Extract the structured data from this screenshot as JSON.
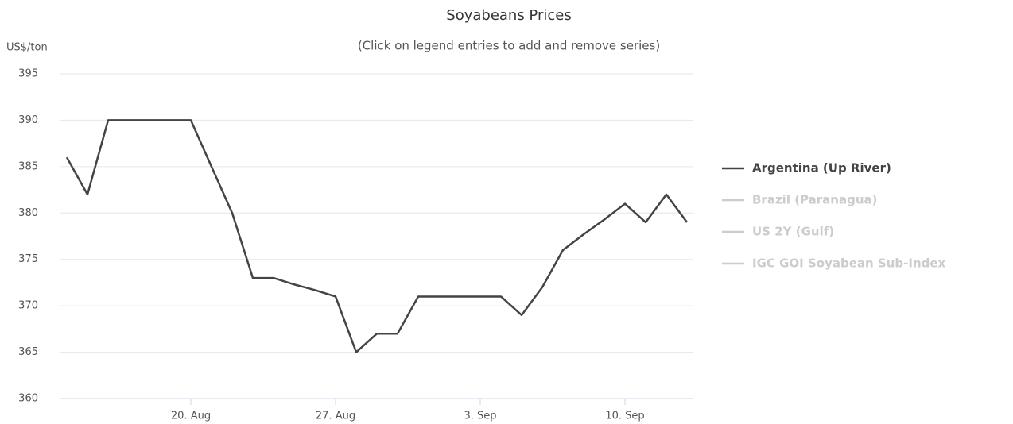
{
  "chart_data": {
    "type": "line",
    "title": "Soyabeans Prices",
    "subtitle": "(Click on legend entries to add and remove series)",
    "y_axis_label": "US$/ton",
    "categories": [
      null,
      null,
      null,
      null,
      null,
      null,
      "20. Aug",
      null,
      null,
      null,
      null,
      null,
      null,
      "27. Aug",
      null,
      null,
      null,
      null,
      null,
      null,
      "3. Sep",
      null,
      null,
      null,
      null,
      null,
      null,
      "10. Sep",
      null,
      null,
      null
    ],
    "series": [
      {
        "name": "Argentina (Up River)",
        "color": "#444444",
        "visible": true,
        "values": [
          386,
          382,
          390,
          390,
          390,
          390,
          390,
          385,
          380,
          373,
          373,
          372.3,
          371.7,
          371,
          365,
          367,
          367,
          371,
          371,
          371,
          371,
          371,
          369,
          372,
          376,
          377.7,
          379.3,
          381,
          379,
          382,
          379
        ]
      },
      {
        "name": "Brazil (Paranagua)",
        "color": "#cccccc",
        "visible": false
      },
      {
        "name": "US 2Y (Gulf)",
        "color": "#cccccc",
        "visible": false
      },
      {
        "name": "IGC GOI Soyabean Sub-Index",
        "color": "#cccccc",
        "visible": false
      }
    ],
    "ylim": [
      360,
      395
    ],
    "yticks": [
      360,
      365,
      370,
      375,
      380,
      385,
      390,
      395
    ],
    "grid": true,
    "legend": "right"
  }
}
